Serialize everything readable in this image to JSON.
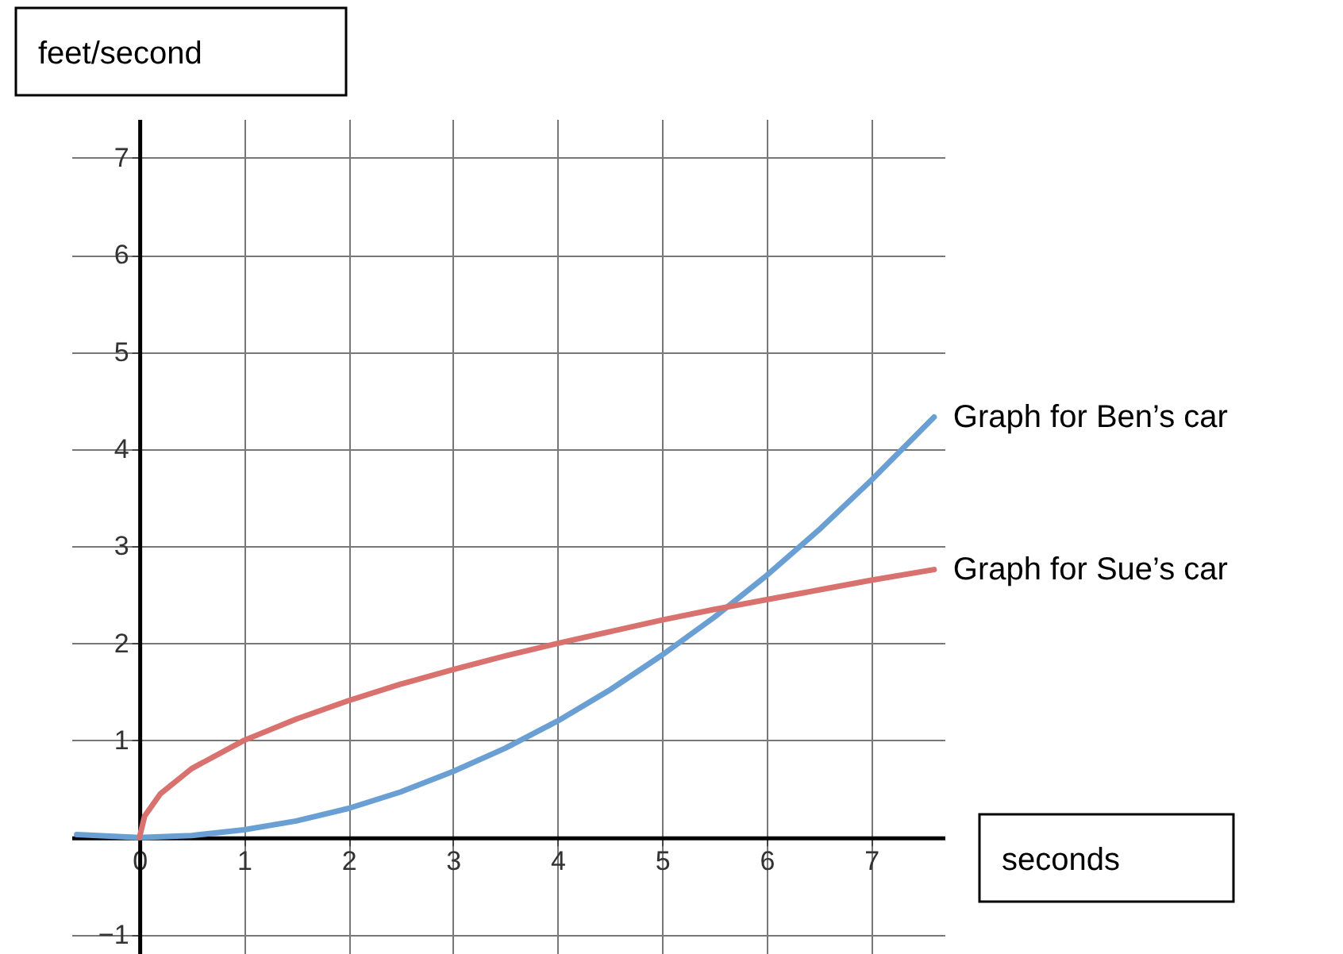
{
  "chart_data": {
    "type": "line",
    "xlabel": "seconds",
    "ylabel": "feet/second",
    "xlim": [
      -0.65,
      7.7
    ],
    "ylim": [
      -1.2,
      7.4
    ],
    "xticks": [
      0,
      1,
      2,
      3,
      4,
      5,
      6,
      7
    ],
    "yticks": [
      -1,
      1,
      2,
      3,
      4,
      5,
      6,
      7
    ],
    "grid": true,
    "line_style": "solid",
    "series": [
      {
        "name": "Graph for Ben’s car",
        "color": "#6a9fd4",
        "x": [
          -0.6,
          0,
          0.5,
          1,
          1.5,
          2,
          2.5,
          3,
          3.5,
          4,
          4.5,
          5,
          5.5,
          6,
          6.5,
          7,
          7.6
        ],
        "values": [
          0.03,
          0,
          0.02,
          0.08,
          0.17,
          0.3,
          0.47,
          0.68,
          0.92,
          1.2,
          1.52,
          1.88,
          2.27,
          2.7,
          3.17,
          3.68,
          4.33
        ]
      },
      {
        "name": "Graph for Sue’s car",
        "color": "#d9726f",
        "x": [
          0,
          0.05,
          0.2,
          0.5,
          1,
          1.5,
          2,
          2.5,
          3,
          3.5,
          4,
          4.5,
          5,
          5.5,
          6,
          6.5,
          7,
          7.6
        ],
        "values": [
          0,
          0.22,
          0.45,
          0.71,
          1,
          1.22,
          1.41,
          1.58,
          1.73,
          1.87,
          2,
          2.12,
          2.24,
          2.35,
          2.45,
          2.55,
          2.65,
          2.76
        ]
      }
    ]
  }
}
